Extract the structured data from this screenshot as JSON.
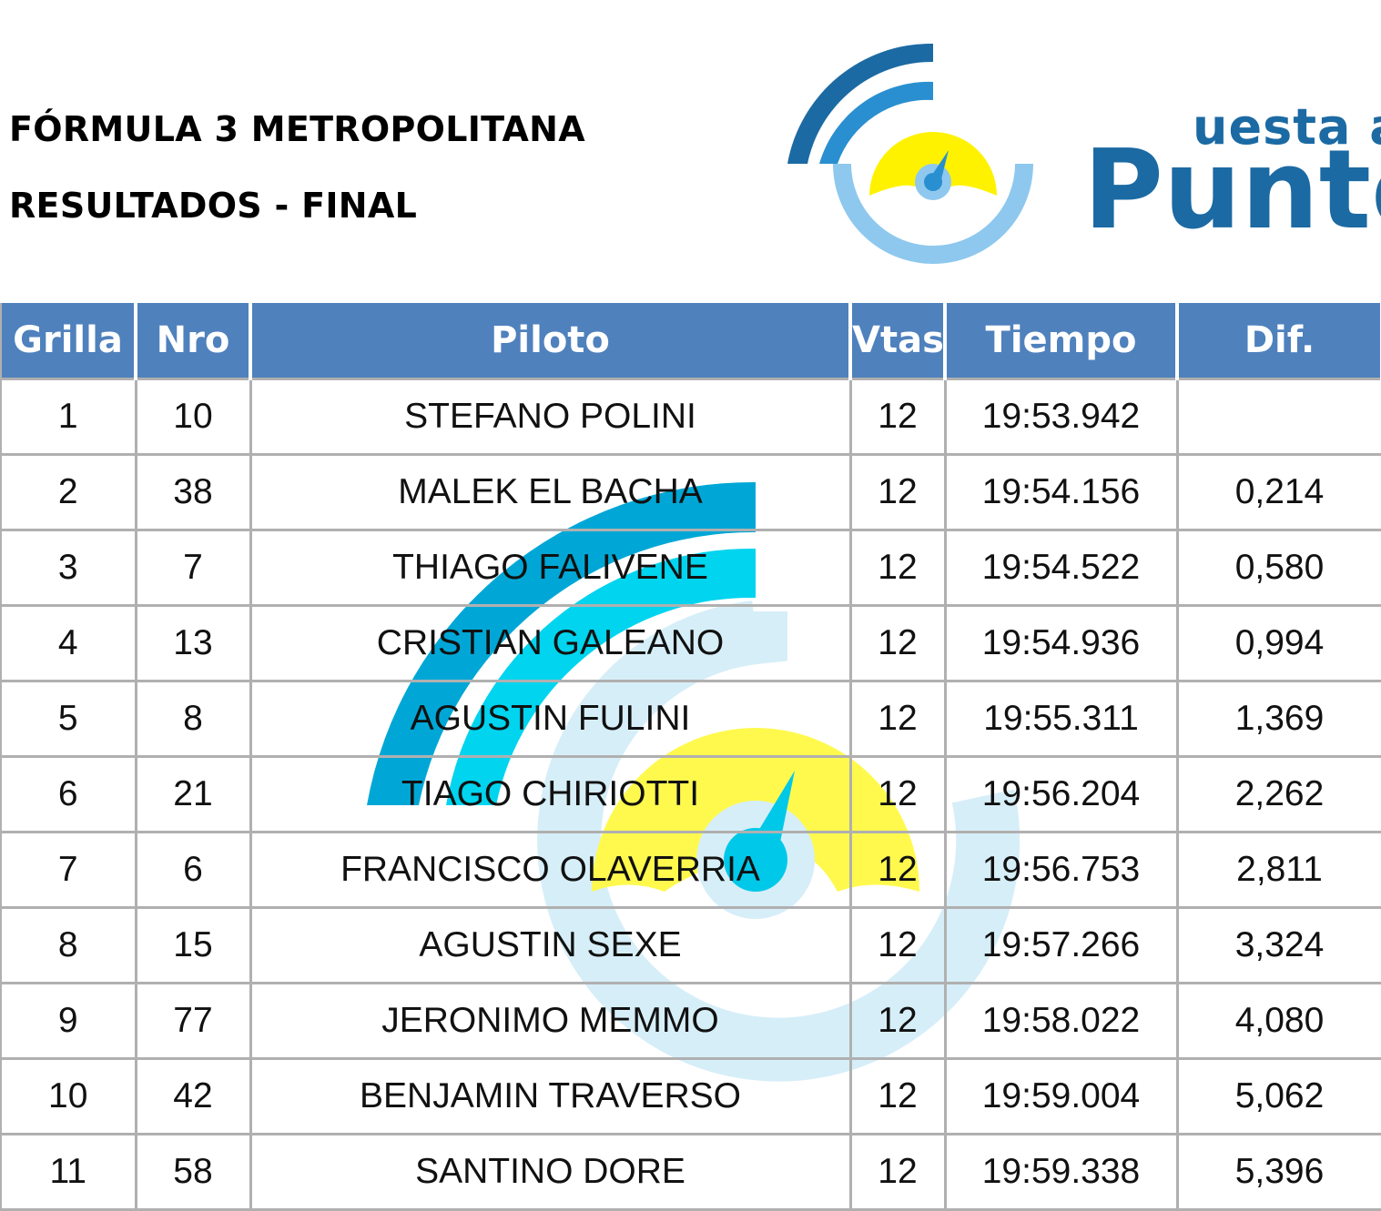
{
  "header": {
    "title": "FÓRMULA 3 METROPOLITANA",
    "subtitle": "RESULTADOS - FINAL"
  },
  "logo": {
    "word_top": "uesta a",
    "word_bottom": "Punto",
    "colors": {
      "dark_blue": "#1b6aa3",
      "mid_blue": "#2a8fd0",
      "light_blue": "#8ec8ee",
      "yellow": "#fff200"
    },
    "icon": "speedometer-gauge-icon"
  },
  "table": {
    "columns": [
      "Grilla",
      "Nro",
      "Piloto",
      "Vtas",
      "Tiempo",
      "Dif."
    ],
    "rows": [
      {
        "grilla": "1",
        "nro": "10",
        "piloto": "STEFANO POLINI",
        "vtas": "12",
        "tiempo": "19:53.942",
        "dif": ""
      },
      {
        "grilla": "2",
        "nro": "38",
        "piloto": "MALEK EL BACHA",
        "vtas": "12",
        "tiempo": "19:54.156",
        "dif": "0,214"
      },
      {
        "grilla": "3",
        "nro": "7",
        "piloto": "THIAGO FALIVENE",
        "vtas": "12",
        "tiempo": "19:54.522",
        "dif": "0,580"
      },
      {
        "grilla": "4",
        "nro": "13",
        "piloto": "CRISTIAN GALEANO",
        "vtas": "12",
        "tiempo": "19:54.936",
        "dif": "0,994"
      },
      {
        "grilla": "5",
        "nro": "8",
        "piloto": "AGUSTIN FULINI",
        "vtas": "12",
        "tiempo": "19:55.311",
        "dif": "1,369"
      },
      {
        "grilla": "6",
        "nro": "21",
        "piloto": "TIAGO CHIRIOTTI",
        "vtas": "12",
        "tiempo": "19:56.204",
        "dif": "2,262"
      },
      {
        "grilla": "7",
        "nro": "6",
        "piloto": "FRANCISCO OLAVERRIA",
        "vtas": "12",
        "tiempo": "19:56.753",
        "dif": "2,811"
      },
      {
        "grilla": "8",
        "nro": "15",
        "piloto": "AGUSTIN SEXE",
        "vtas": "12",
        "tiempo": "19:57.266",
        "dif": "3,324"
      },
      {
        "grilla": "9",
        "nro": "77",
        "piloto": "JERONIMO MEMMO",
        "vtas": "12",
        "tiempo": "19:58.022",
        "dif": "4,080"
      },
      {
        "grilla": "10",
        "nro": "42",
        "piloto": "BENJAMIN TRAVERSO",
        "vtas": "12",
        "tiempo": "19:59.004",
        "dif": "5,062"
      },
      {
        "grilla": "11",
        "nro": "58",
        "piloto": "SANTINO DORE",
        "vtas": "12",
        "tiempo": "19:59.338",
        "dif": "5,396"
      }
    ]
  }
}
